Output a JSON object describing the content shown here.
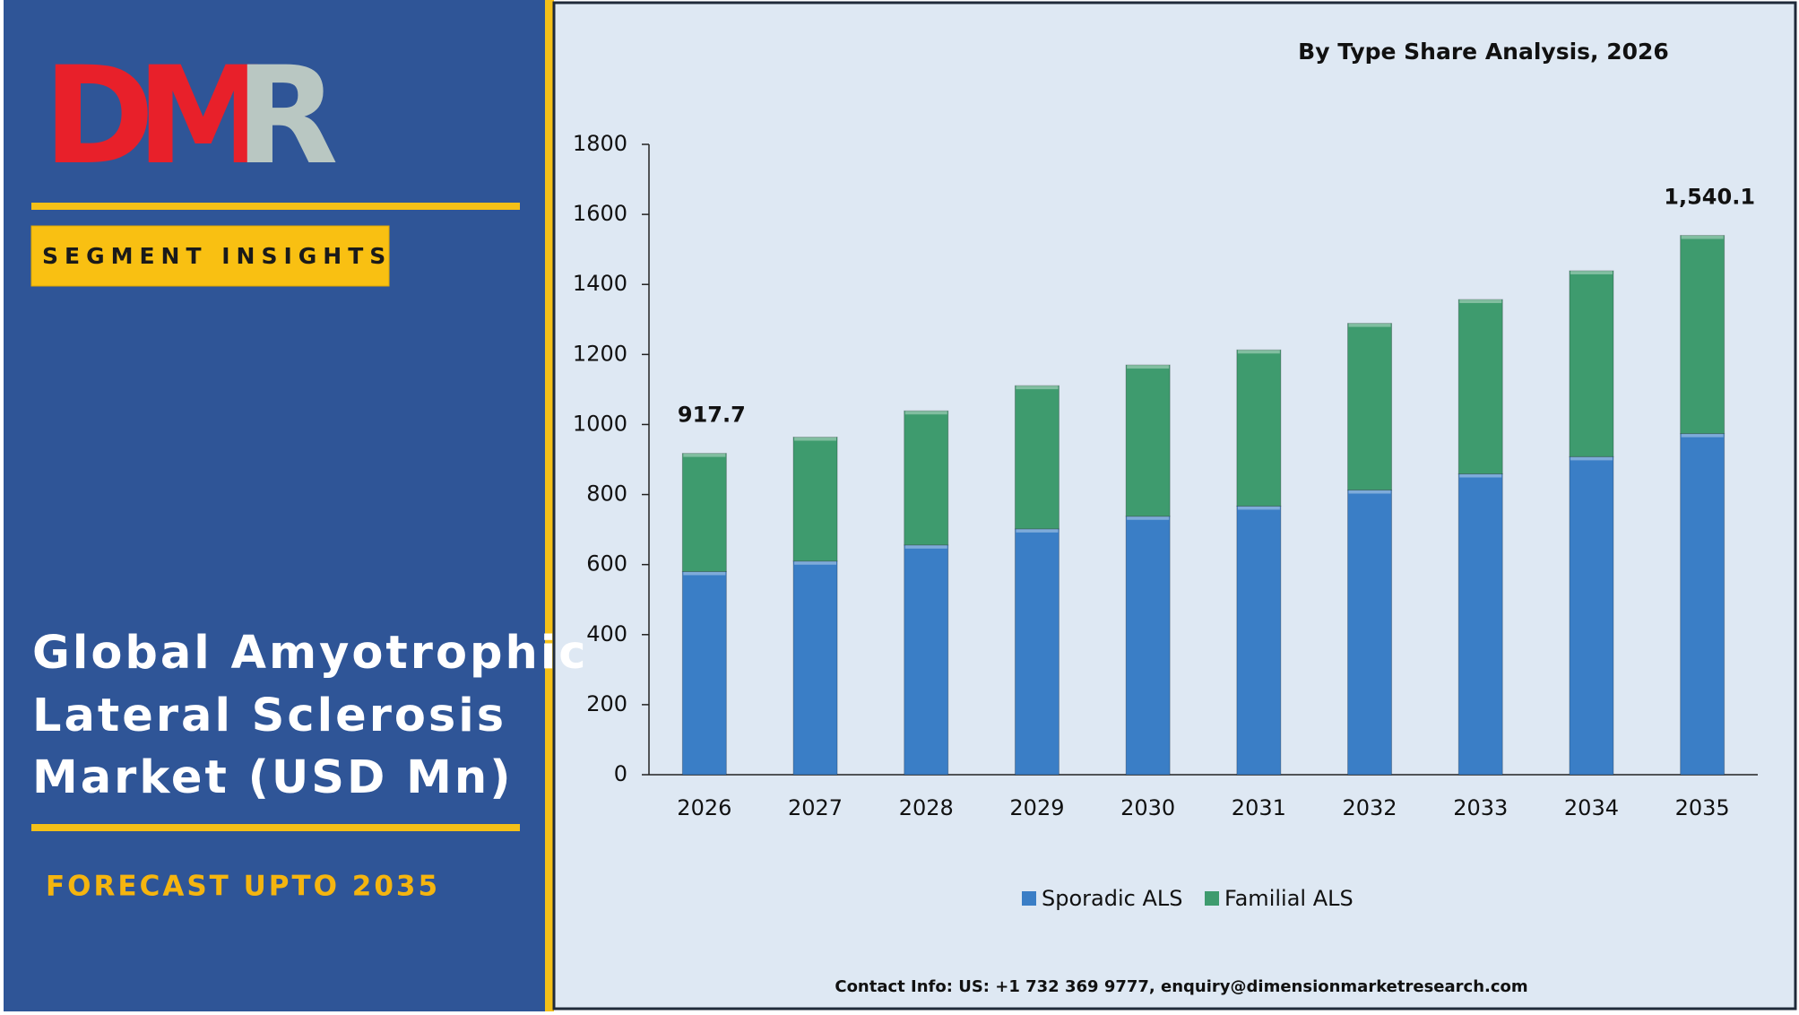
{
  "sidebar": {
    "logo": [
      "D",
      "M",
      "R"
    ],
    "badge": "SEGMENT INSIGHTS",
    "title_lines": [
      "Global Amyotrophic",
      "Lateral Sclerosis",
      "Market (USD Mn)"
    ],
    "forecast": "FORECAST UPTO 2035"
  },
  "chart_data": {
    "type": "stacked_bar",
    "title": "By Type Share Analysis, 2026",
    "categories": [
      "2026",
      "2027",
      "2028",
      "2029",
      "2030",
      "2031",
      "2032",
      "2033",
      "2034",
      "2035"
    ],
    "series": [
      {
        "name": "Sporadic ALS",
        "color": "#3a7ec6",
        "values": [
          580,
          610,
          656,
          702,
          738,
          767,
          813,
          859,
          908,
          974
        ]
      },
      {
        "name": "Familial ALS",
        "color": "#3e9b6e",
        "values": [
          337.7,
          354,
          383,
          409,
          432,
          446,
          476,
          498,
          531,
          566.1
        ]
      }
    ],
    "annotations": [
      {
        "category": 0,
        "value": 917.7,
        "label": "917.7"
      },
      {
        "category": 9,
        "value": 1540.1,
        "label": "1,540.1"
      }
    ],
    "ylim": [
      0,
      1800
    ],
    "yticks": [
      0,
      200,
      400,
      600,
      800,
      1000,
      1200,
      1400,
      1600,
      1800
    ],
    "legend": "bottom"
  },
  "footer": "Contact Info: US: +1 732 369 9777, enquiry@dimensionmarketresearch.com"
}
